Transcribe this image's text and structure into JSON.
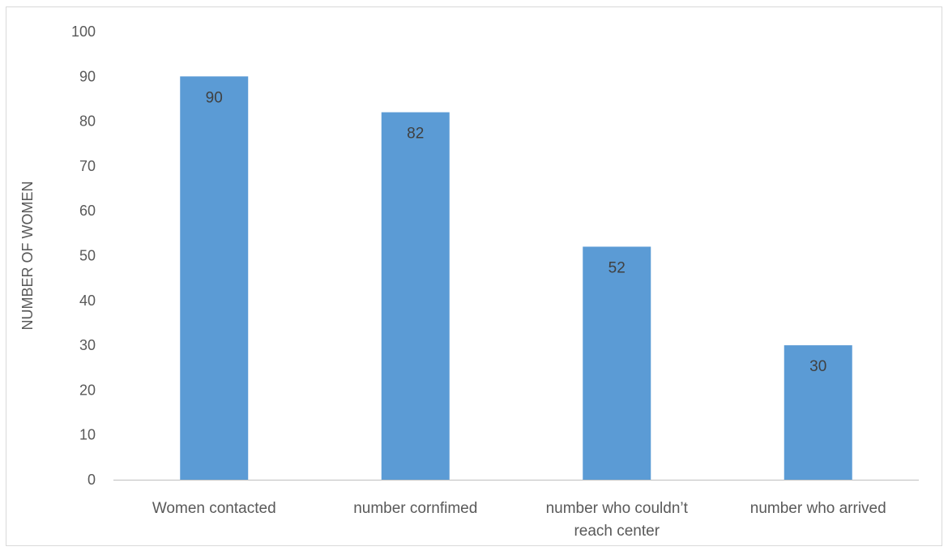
{
  "chart_data": {
    "type": "bar",
    "title": "",
    "xlabel": "",
    "ylabel": "NUMBER OF WOMEN",
    "categories": [
      [
        "Women contacted"
      ],
      [
        "number cornfimed"
      ],
      [
        "number who couldn’t",
        "reach center"
      ],
      [
        "number who arrived"
      ]
    ],
    "values": [
      90,
      82,
      52,
      30
    ],
    "data_labels": [
      "90",
      "82",
      "52",
      "30"
    ],
    "ylim": [
      0,
      100
    ],
    "yticks": [
      "0",
      "10",
      "20",
      "30",
      "40",
      "50",
      "60",
      "70",
      "80",
      "90",
      "100"
    ],
    "grid": false,
    "legend": "none",
    "bar_color": "#5b9bd5"
  }
}
